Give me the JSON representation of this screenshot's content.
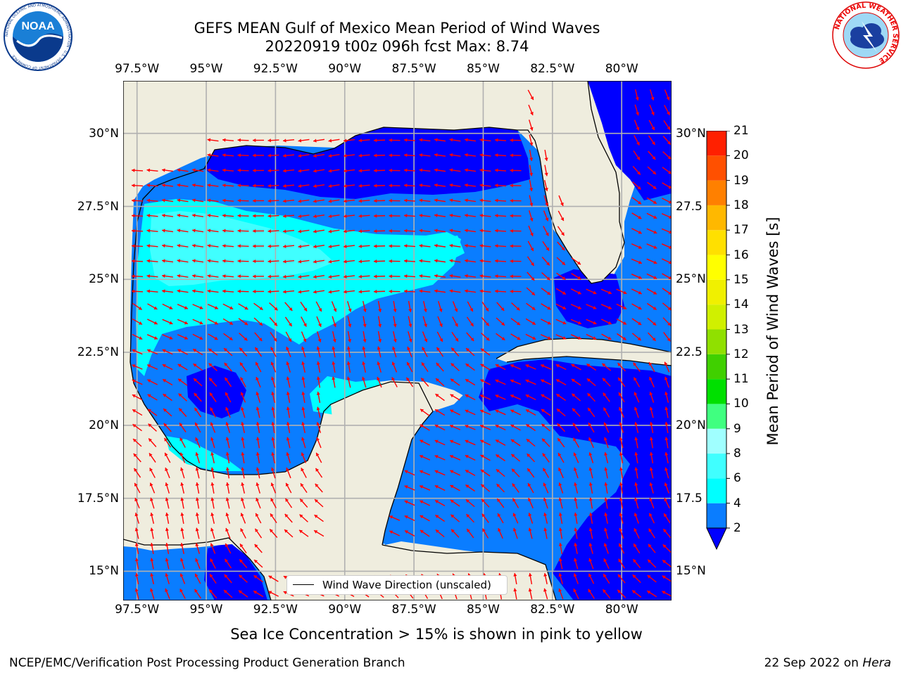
{
  "header": {
    "title_line1": "GEFS MEAN Gulf of Mexico Mean Period of Wind Waves",
    "title_line2": "20220919 t00z 096h fcst   Max: 8.74"
  },
  "logos": {
    "left": {
      "name": "noaa-logo",
      "text": "NOAA",
      "ring_text": "NATIONAL OCEANIC AND ATMOSPHERIC ADMINISTRATION · U.S. DEPARTMENT OF COMMERCE"
    },
    "right": {
      "name": "nws-logo",
      "ring_text": "NATIONAL WEATHER SERVICE"
    }
  },
  "map": {
    "lon_ticks": [
      {
        "lon": -97.5,
        "label": "97.5°W"
      },
      {
        "lon": -95,
        "label": "95°W"
      },
      {
        "lon": -92.5,
        "label": "92.5°W"
      },
      {
        "lon": -90,
        "label": "90°W"
      },
      {
        "lon": -87.5,
        "label": "87.5°W"
      },
      {
        "lon": -85,
        "label": "85°W"
      },
      {
        "lon": -82.5,
        "label": "82.5°W"
      },
      {
        "lon": -80,
        "label": "80°W"
      }
    ],
    "lat_ticks": [
      {
        "lat": 30,
        "label": "30°N"
      },
      {
        "lat": 27.5,
        "label": "27.5°N"
      },
      {
        "lat": 25,
        "label": "25°N"
      },
      {
        "lat": 22.5,
        "label": "22.5°N"
      },
      {
        "lat": 20,
        "label": "20°N"
      },
      {
        "lat": 17.5,
        "label": "17.5°N"
      },
      {
        "lat": 15,
        "label": "15°N"
      }
    ],
    "right_lat_labels": [
      {
        "lat": 30,
        "label": "30°N"
      },
      {
        "lat": 27.5,
        "label": "27.5"
      },
      {
        "lat": 25,
        "label": "25°N"
      },
      {
        "lat": 22.5,
        "label": "22.5"
      },
      {
        "lat": 20,
        "label": "20°N"
      },
      {
        "lat": 17.5,
        "label": "17.5"
      },
      {
        "lat": 15,
        "label": "15°N"
      }
    ],
    "extent": {
      "lon_min": -98,
      "lon_max": -78.2,
      "lat_min": 14,
      "lat_max": 31.8
    },
    "colors": {
      "land": "#efedde",
      "ocean_2_4": "#0a7dff",
      "ocean_below_2": "#0000ff",
      "ocean_4_6": "#00ffff",
      "ocean_6_8": "#40ffff",
      "coast": "#000000",
      "arrows": "#ff0000",
      "grid": "#b0b0b0"
    },
    "legend_label": "Wind Wave Direction (unscaled)"
  },
  "colorbar": {
    "label": "Mean Period of Wind Waves [s]",
    "levels": [
      2,
      4,
      6,
      8,
      9,
      10,
      11,
      12,
      13,
      14,
      15,
      16,
      17,
      18,
      19,
      20,
      21
    ],
    "colors": [
      "#0a7dff",
      "#00ffff",
      "#40ffff",
      "#a0ffff",
      "#40ff80",
      "#00e000",
      "#40d000",
      "#90e000",
      "#d0f000",
      "#f0f000",
      "#ffff00",
      "#ffe000",
      "#ffb800",
      "#ff8000",
      "#ff5000",
      "#ff2000"
    ],
    "under_color": "#0000ff"
  },
  "footer": {
    "sea_ice_note": "Sea Ice Concentration > 15% is shown in pink to yellow",
    "credit": "NCEP/EMC/Verification Post Processing Product Generation Branch",
    "date_prefix": "22 Sep 2022 on",
    "date_host": "Hera"
  }
}
